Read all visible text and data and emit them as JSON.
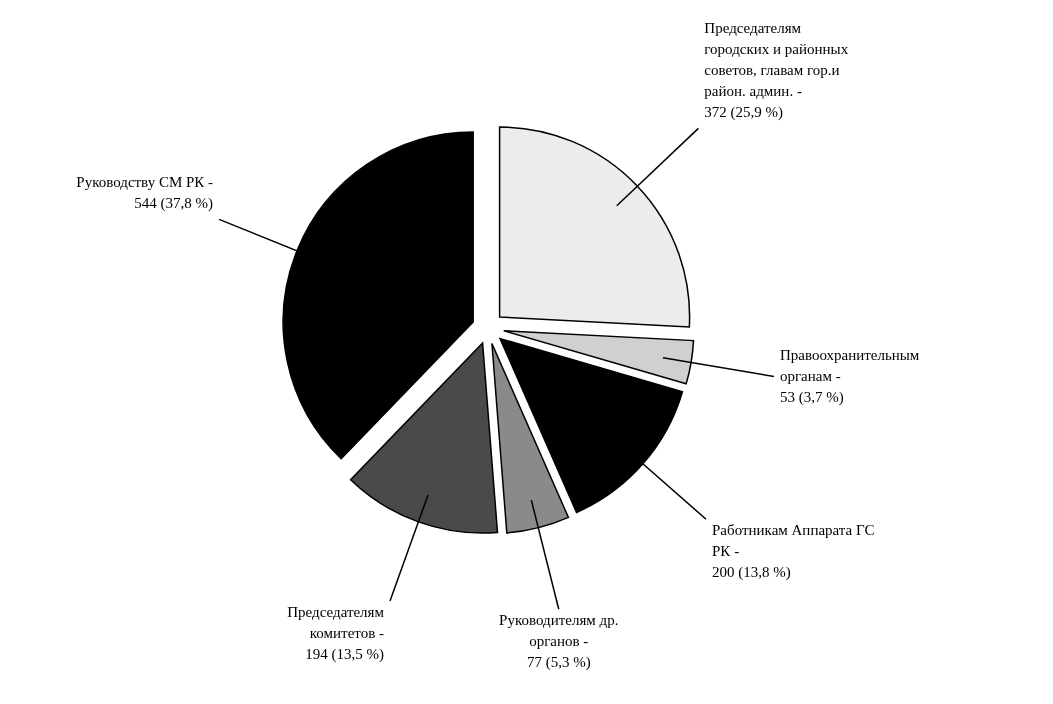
{
  "chart_data": {
    "type": "pie",
    "categories": [
      "Председателям городских и районных советов, главам гор.и район. админ. -",
      "Правоохранительным органам -",
      "Работникам Аппарата ГС РК -",
      "Руководителям др. органов -",
      "Председателям комитетов -",
      "Руководству СМ РК -"
    ],
    "values": [
      372,
      53,
      200,
      77,
      194,
      544
    ],
    "value_labels": [
      "372 (25,9 %)",
      "53 (3,7 %)",
      "200 (13,8 %)",
      "77 (5,3 %)",
      "194 (13,5 %)",
      "544 (37,8 %)"
    ],
    "colors": [
      "#ececec",
      "#d0d0d0",
      "#000000",
      "#8a8a8a",
      "#4a4a4a",
      "#000000"
    ]
  }
}
